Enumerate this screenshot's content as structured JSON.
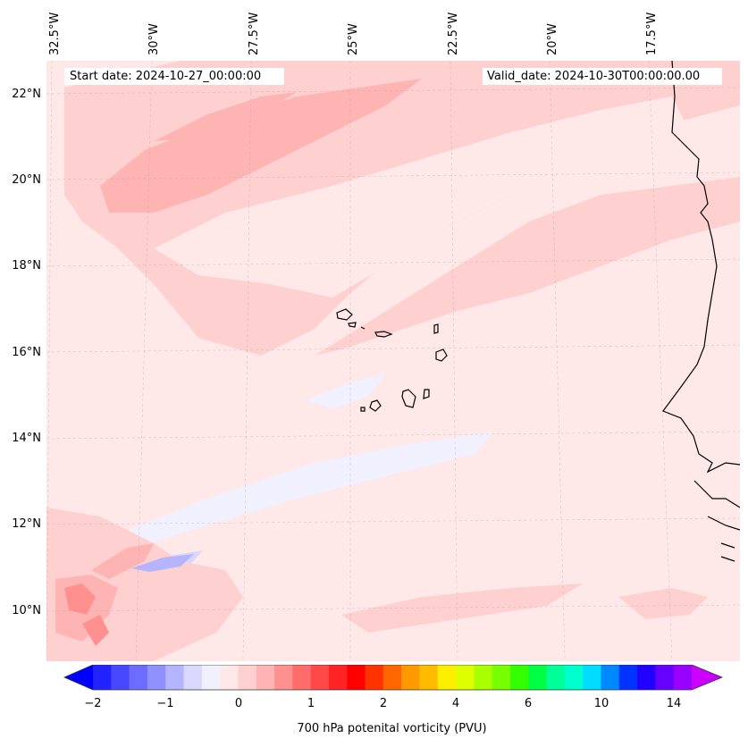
{
  "header": {
    "start_date": "Start date: 2024-10-27_00:00:00",
    "valid_date": "Valid_date: 2024-10-30T00:00:00.00"
  },
  "axes": {
    "longitude_labels": [
      "32.5°W",
      "30°W",
      "27.5°W",
      "25°W",
      "22.5°W",
      "20°W",
      "17.5°W"
    ],
    "latitude_labels": [
      "22°N",
      "20°N",
      "18°N",
      "16°N",
      "14°N",
      "12°N",
      "10°N"
    ]
  },
  "colorbar": {
    "label": "700 hPa potenital vorticity (PVU)",
    "ticks": [
      "−2",
      "−1",
      "0",
      "1",
      "2",
      "4",
      "6",
      "10",
      "14"
    ],
    "colors": [
      "#0000ff",
      "#2323ff",
      "#4848ff",
      "#6c6cff",
      "#9090ff",
      "#b4b4ff",
      "#d8d8ff",
      "#f0f0ff",
      "#ffe8e8",
      "#ffd0d0",
      "#ffb4b4",
      "#ff9090",
      "#ff6c6c",
      "#ff4848",
      "#ff2323",
      "#ff0000",
      "#ff3300",
      "#ff6600",
      "#ff9900",
      "#ffbb00",
      "#ffee00",
      "#ddff00",
      "#aaff00",
      "#77ff00",
      "#33ff00",
      "#00ff44",
      "#00ff99",
      "#00ffcc",
      "#00ddff",
      "#0088ff",
      "#0033ff",
      "#2200ff",
      "#6600ff",
      "#9900ff",
      "#cc00ff"
    ]
  },
  "map": {
    "background_color": "#ffe8e8"
  }
}
